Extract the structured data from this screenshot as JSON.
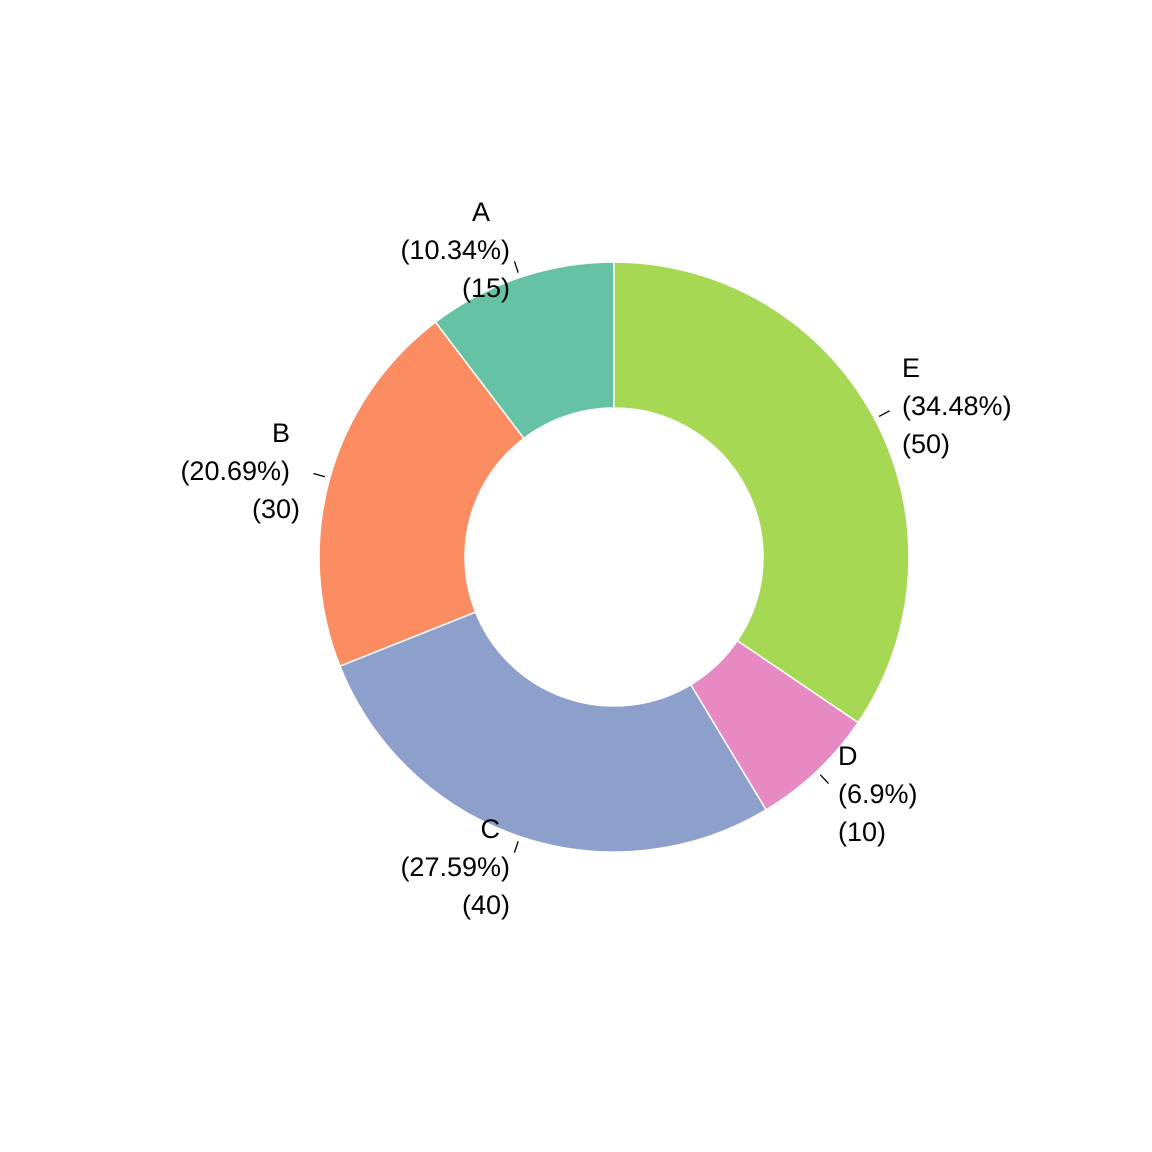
{
  "chart_data": {
    "type": "pie",
    "variant": "donut",
    "start_angle_deg": 0,
    "direction": "counterclockwise",
    "legend": "none",
    "slices": [
      {
        "label": "A",
        "percent_text": "(10.34%)",
        "value_text": "(15)",
        "value": 15,
        "color": "#66C2A5"
      },
      {
        "label": "B",
        "percent_text": "(20.69%)",
        "value_text": "(30)",
        "value": 30,
        "color": "#FC8D62"
      },
      {
        "label": "C",
        "percent_text": "(27.59%)",
        "value_text": "(40)",
        "value": 40,
        "color": "#8DA0CB"
      },
      {
        "label": "D",
        "percent_text": "(6.9%)",
        "value_text": "(10)",
        "value": 10,
        "color": "#E78AC3"
      },
      {
        "label": "E",
        "percent_text": "(34.48%)",
        "value_text": "(50)",
        "value": 50,
        "color": "#A6D854"
      }
    ]
  }
}
